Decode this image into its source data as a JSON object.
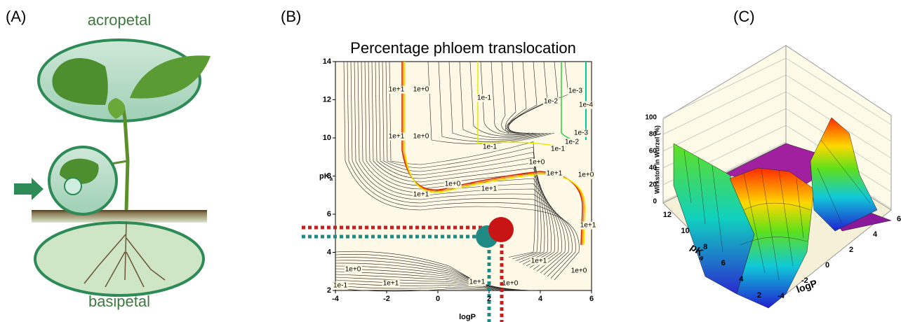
{
  "panels": [
    {
      "label": "(A)",
      "top_label": "acropetal",
      "bottom_label": "basipetal"
    },
    {
      "label": "(B)",
      "title": "Percentage phloem translocation",
      "x_label": "logP",
      "y_label": "pK",
      "y_label_sub": "a",
      "xlim": [
        -4,
        6
      ],
      "ylim": [
        2,
        14
      ],
      "x_ticks": [
        -4,
        -2,
        0,
        2,
        4,
        6
      ],
      "y_ticks": [
        2,
        4,
        6,
        8,
        10,
        12,
        14
      ],
      "contour_labels": [
        "1e+1",
        "1e+0",
        "1e-1",
        "1e-2",
        "1e-3",
        "1e-4",
        "1e+1",
        "1e+0",
        "1e-1",
        "1e-1",
        "1e-2",
        "1e-3",
        "1e+0",
        "1e+1",
        "1e+0",
        "1e+0",
        "1e+1",
        "1e+1",
        "1e+1",
        "1e+0",
        "1e-1",
        "1e+1",
        "1e+1",
        "1e+0",
        "1e+1",
        "1e+0"
      ]
    },
    {
      "label": "(C)",
      "z_label": "Wirkstoff in Wurzel (%)",
      "z_ticks": [
        0,
        20,
        40,
        60,
        80,
        100
      ],
      "y_label": "pK",
      "y_label_sub": "a",
      "y_ticks": [
        12,
        10,
        8,
        6,
        4,
        2
      ],
      "x_label": "logP",
      "x_ticks": [
        -4,
        -2,
        0,
        2,
        4,
        6
      ]
    }
  ]
}
